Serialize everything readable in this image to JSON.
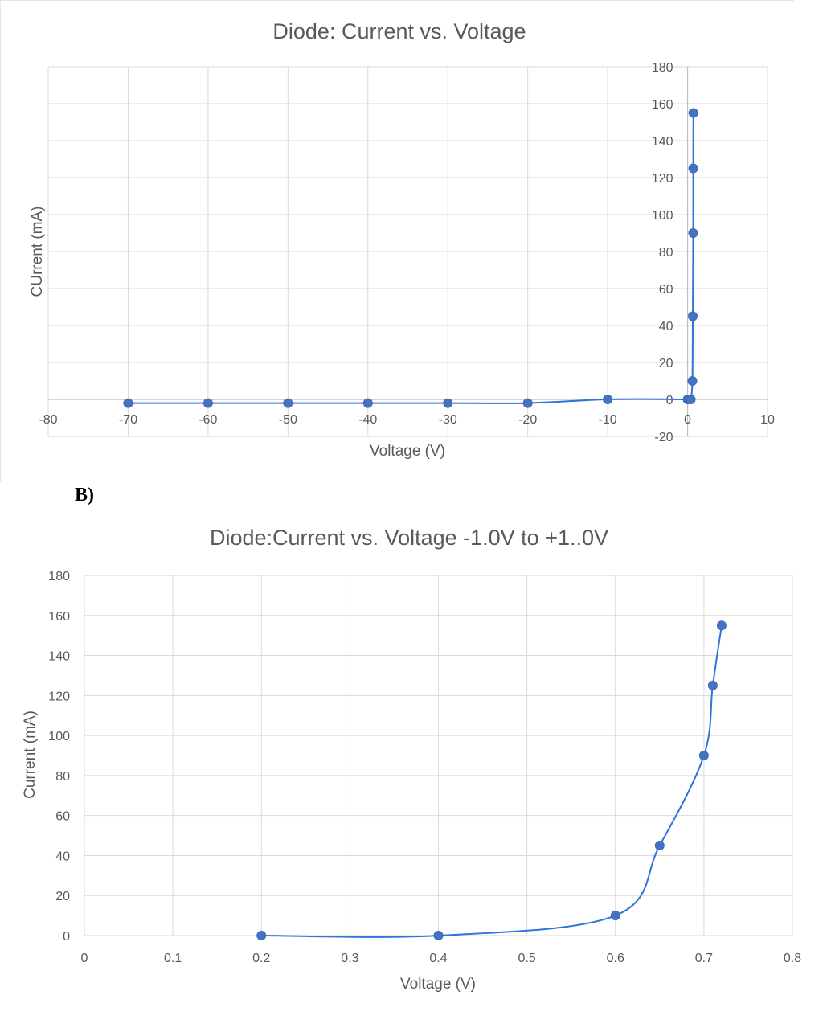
{
  "panel_label": "B)",
  "chart_data": [
    {
      "type": "scatter",
      "title": "Diode: Current vs. Voltage",
      "xlabel": "Voltage (V)",
      "ylabel": "CUrrent (mA)",
      "xlim": [
        -80,
        10
      ],
      "ylim": [
        -20,
        180
      ],
      "xticks": [
        -80,
        -70,
        -60,
        -50,
        -40,
        -30,
        -20,
        -10,
        0,
        10
      ],
      "yticks": [
        -20,
        0,
        20,
        40,
        60,
        80,
        100,
        120,
        140,
        160,
        180
      ],
      "grid": true,
      "smooth_line": true,
      "color": "#4472c4",
      "series": [
        {
          "x": [
            -70,
            -60,
            -50,
            -40,
            -30,
            -20,
            -10,
            0,
            0.2,
            0.4,
            0.6,
            0.65,
            0.7,
            0.71,
            0.72
          ],
          "y": [
            -2,
            -2,
            -2,
            -2,
            -2,
            -2,
            0,
            0,
            0,
            0,
            10,
            45,
            90,
            125,
            155
          ]
        }
      ]
    },
    {
      "type": "scatter",
      "title": "Diode:Current vs. Voltage -1.0V to +1..0V",
      "xlabel": "Voltage (V)",
      "ylabel": "Current (mA)",
      "xlim": [
        0,
        0.8
      ],
      "ylim": [
        0,
        180
      ],
      "xticks": [
        0,
        0.1,
        0.2,
        0.3,
        0.4,
        0.5,
        0.6,
        0.7,
        0.8
      ],
      "yticks": [
        0,
        20,
        40,
        60,
        80,
        100,
        120,
        140,
        160,
        180
      ],
      "grid": true,
      "smooth_line": true,
      "color": "#4472c4",
      "series": [
        {
          "x": [
            0.2,
            0.4,
            0.6,
            0.65,
            0.7,
            0.71,
            0.72
          ],
          "y": [
            0,
            0,
            10,
            45,
            90,
            125,
            155
          ]
        }
      ]
    }
  ]
}
